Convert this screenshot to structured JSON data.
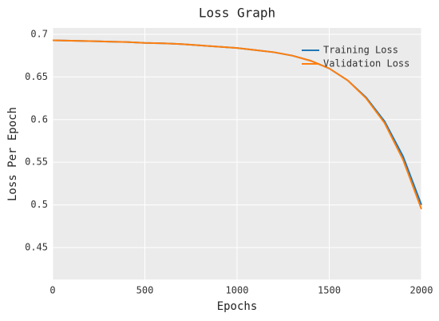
{
  "chart_data": {
    "type": "line",
    "title": "Loss Graph",
    "x_label": "Epochs",
    "y_label": "Loss Per Epoch",
    "x": [
      0,
      100,
      200,
      300,
      400,
      500,
      600,
      700,
      800,
      900,
      1000,
      1100,
      1200,
      1300,
      1400,
      1500,
      1600,
      1700,
      1800,
      1900,
      2000
    ],
    "series": [
      {
        "name": "Training Loss",
        "color": "#1f77b4",
        "values": [
          0.693,
          0.6925,
          0.692,
          0.6915,
          0.691,
          0.69,
          0.6895,
          0.6885,
          0.687,
          0.6855,
          0.684,
          0.6815,
          0.679,
          0.675,
          0.669,
          0.66,
          0.646,
          0.626,
          0.598,
          0.557,
          0.5
        ]
      },
      {
        "name": "Validation Loss",
        "color": "#ff7f0e",
        "values": [
          0.693,
          0.6925,
          0.692,
          0.6915,
          0.691,
          0.69,
          0.6895,
          0.6885,
          0.687,
          0.6855,
          0.684,
          0.6815,
          0.679,
          0.675,
          0.669,
          0.66,
          0.646,
          0.625,
          0.596,
          0.553,
          0.495
        ]
      }
    ],
    "xlim": [
      0,
      2000
    ],
    "ylim": [
      0.4125,
      0.7075
    ],
    "xticks": [
      0,
      500,
      1000,
      1500,
      2000
    ],
    "yticks": [
      0.45,
      0.5,
      0.55,
      0.6,
      0.65,
      0.7
    ],
    "grid": true,
    "legend": "upper right"
  }
}
